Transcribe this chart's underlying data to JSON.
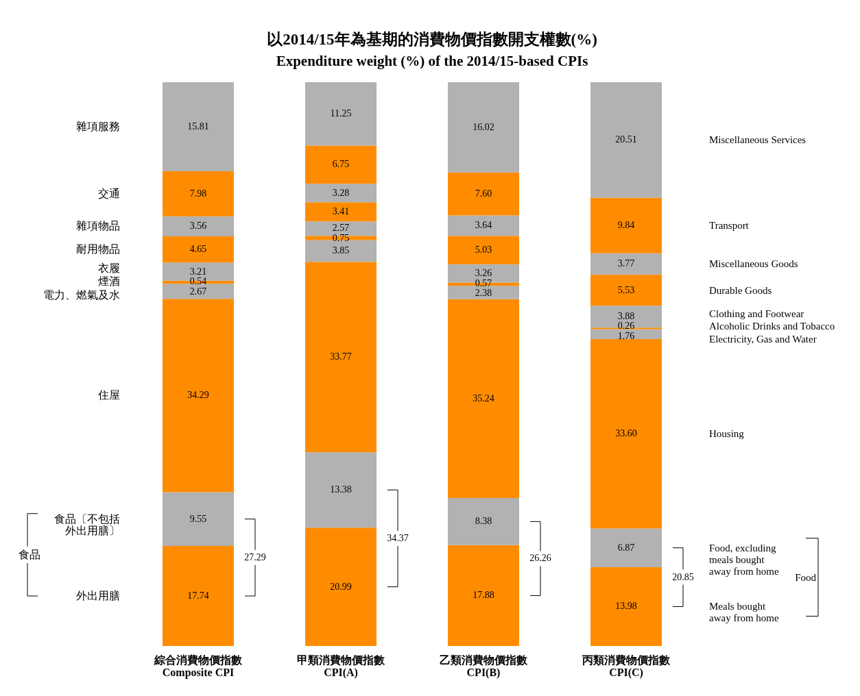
{
  "chart_data": {
    "type": "bar",
    "stacked": true,
    "legend": false,
    "grid": false,
    "tick_labels": "x",
    "title": "以2014/15年為基期的消費物價指數開支權數(%)",
    "subtitle": "Expenditure weight (%) of the 2014/15-based CPIs",
    "categories": [
      "綜合消費物價指數\nComposite CPI",
      "甲類消費物價指數\nCPI(A)",
      "乙類消費物價指數\nCPI(B)",
      "丙類消費物價指數\nCPI(C)"
    ],
    "ylim": [
      0,
      100
    ],
    "series": [
      {
        "name": "Meals bought\naway from home",
        "color": "#ff8c00",
        "values": [
          17.74,
          20.99,
          17.88,
          13.98
        ],
        "value_labels": [
          "17.74",
          "20.99",
          "17.88",
          "13.98"
        ]
      },
      {
        "name": "Food, excluding\nmeals bought\naway from home",
        "color": "#b2b2b2",
        "values": [
          9.55,
          13.38,
          8.38,
          6.87
        ],
        "value_labels": [
          "9.55",
          "13.38",
          "8.38",
          "6.87"
        ]
      },
      {
        "name": "Housing",
        "color": "#ff8c00",
        "values": [
          34.29,
          33.77,
          35.24,
          33.6
        ],
        "value_labels": [
          "34.29",
          "33.77",
          "35.24",
          "33.60"
        ]
      },
      {
        "name": "Electricity, Gas and Water",
        "color": "#b2b2b2",
        "values": [
          2.67,
          3.85,
          2.38,
          1.76
        ],
        "value_labels": [
          "2.67",
          "3.85",
          "2.38",
          "1.76"
        ]
      },
      {
        "name": "Alcoholic Drinks and Tobacco",
        "color": "#ff8c00",
        "values": [
          0.54,
          0.75,
          0.57,
          0.26
        ],
        "value_labels": [
          "0.54",
          "0.75",
          "0.57",
          "0.26"
        ]
      },
      {
        "name": "Clothing and Footwear",
        "color": "#b2b2b2",
        "values": [
          3.21,
          2.57,
          3.26,
          3.88
        ],
        "value_labels": [
          "3.21",
          "2.57",
          "3.26",
          "3.88"
        ]
      },
      {
        "name": "Durable Goods",
        "color": "#ff8c00",
        "values": [
          4.65,
          3.41,
          5.03,
          5.53
        ],
        "value_labels": [
          "4.65",
          "3.41",
          "5.03",
          "5.53"
        ]
      },
      {
        "name": "Miscellaneous Goods",
        "color": "#b2b2b2",
        "values": [
          3.56,
          3.28,
          3.64,
          3.77
        ],
        "value_labels": [
          "3.56",
          "3.28",
          "3.64",
          "3.77"
        ]
      },
      {
        "name": "Transport",
        "color": "#ff8c00",
        "values": [
          7.98,
          6.75,
          7.6,
          9.84
        ],
        "value_labels": [
          "7.98",
          "6.75",
          "7.60",
          "9.84"
        ]
      },
      {
        "name": "Miscellaneous Services",
        "color": "#b2b2b2",
        "values": [
          15.81,
          11.25,
          16.02,
          20.51
        ],
        "value_labels": [
          "15.81",
          "11.25",
          "16.02",
          "20.51"
        ]
      }
    ],
    "annotations": [
      "外出用膳",
      "食品〔不包括外出用膳〕",
      "住屋",
      "電力、燃氣及水",
      "煙酒",
      "衣履",
      "耐用物品",
      "雜項物品",
      "交通",
      "雜項服務",
      "食品",
      "Food",
      "27.29",
      "34.37",
      "26.26",
      "20.85"
    ]
  }
}
